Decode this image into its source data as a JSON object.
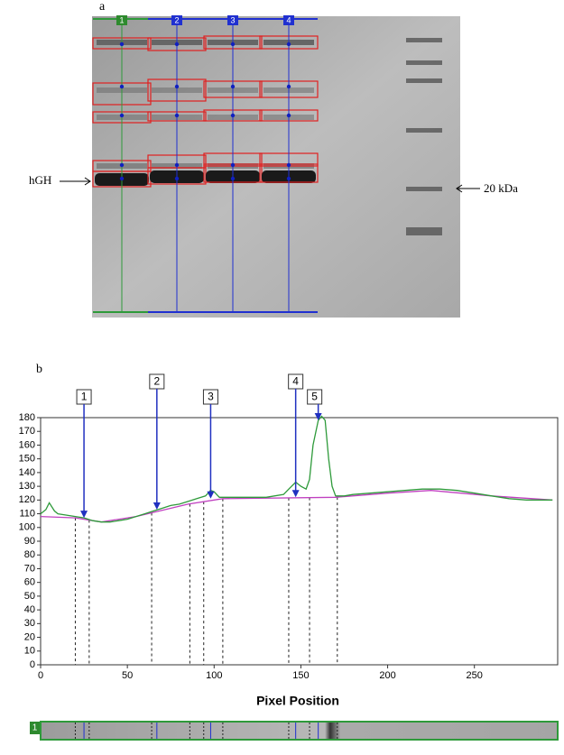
{
  "panel_a": {
    "label": "a",
    "lanes": [
      "1",
      "2",
      "3",
      "4"
    ],
    "left_label": "hGH",
    "right_label": "20 kDa"
  },
  "chart_data": {
    "type": "line",
    "panel_label": "b",
    "xlabel": "Pixel Position",
    "strip_label": "1",
    "xlim": [
      0,
      298
    ],
    "ylim": [
      0,
      180
    ],
    "xticks": [
      0,
      50,
      100,
      150,
      200,
      250
    ],
    "yticks": [
      0,
      10,
      20,
      30,
      40,
      50,
      60,
      70,
      80,
      90,
      100,
      110,
      120,
      130,
      140,
      150,
      160,
      170,
      180
    ],
    "series": [
      {
        "color": "#2e9a3a",
        "x": [
          0,
          3,
          5,
          8,
          10,
          15,
          20,
          25,
          30,
          35,
          40,
          45,
          50,
          55,
          60,
          65,
          70,
          75,
          80,
          85,
          90,
          95,
          98,
          100,
          103,
          110,
          120,
          130,
          140,
          143,
          147,
          150,
          153,
          155,
          157,
          160,
          162,
          164,
          166,
          168,
          170,
          175,
          180,
          190,
          200,
          210,
          220,
          230,
          240,
          250,
          260,
          270,
          280,
          290,
          295
        ],
        "values": [
          110,
          113,
          118,
          112,
          110,
          109,
          108,
          107,
          105,
          104,
          104,
          105,
          106,
          108,
          110,
          112,
          114,
          116,
          117,
          119,
          121,
          123,
          127,
          126,
          122,
          122,
          122,
          122,
          124,
          128,
          133,
          130,
          128,
          135,
          160,
          178,
          181,
          178,
          150,
          130,
          123,
          123,
          124,
          125,
          126,
          127,
          128,
          128,
          127,
          125,
          123,
          121,
          120,
          120,
          120
        ]
      },
      {
        "color": "#c040c0",
        "x": [
          0,
          20,
          35,
          55,
          85,
          105,
          170,
          200,
          225,
          260,
          295
        ],
        "values": [
          108,
          107,
          104,
          108,
          117,
          121,
          122,
          125,
          127,
          123,
          120
        ]
      }
    ],
    "annotations": [
      {
        "label": "1",
        "x": 25,
        "y": 107
      },
      {
        "label": "2",
        "x": 67,
        "y": 113
      },
      {
        "label": "3",
        "x": 98,
        "y": 121
      },
      {
        "label": "4",
        "x": 147,
        "y": 122
      },
      {
        "label": "5",
        "x": 160,
        "y": 178
      }
    ],
    "boundaries": [
      20,
      28,
      64,
      86,
      94,
      105,
      143,
      155,
      171
    ],
    "baseline_color": "#c040c0"
  }
}
